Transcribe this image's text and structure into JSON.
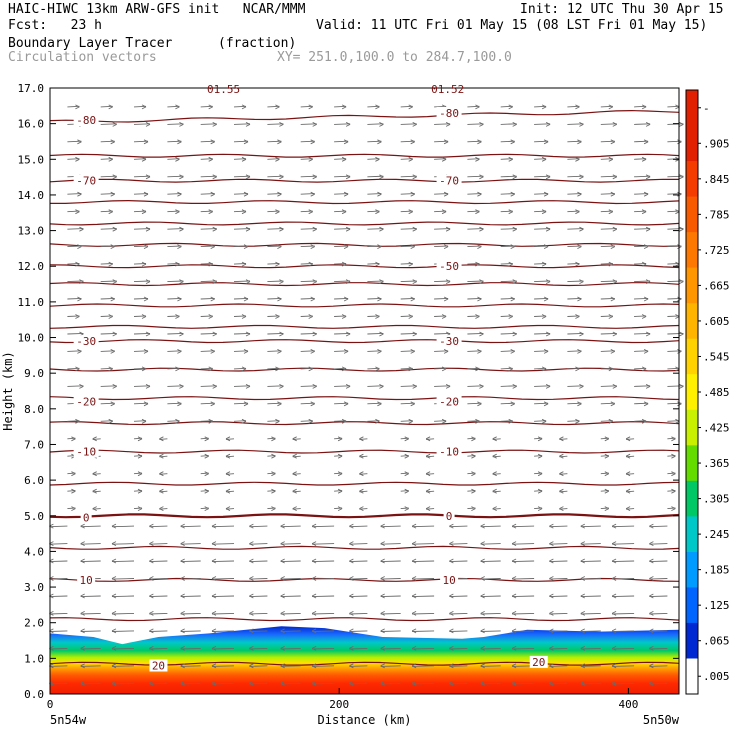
{
  "header": {
    "model": "HAIC-HIWC 13km ARW-GFS init   NCAR/MMM",
    "init": "Init: 12 UTC Thu 30 Apr 15",
    "fcst": "Fcst:   23 h",
    "valid": "Valid: 11 UTC Fri 01 May 15 (08 LST Fri 01 May 15)",
    "field": "Boundary Layer Tracer",
    "units": "(fraction)",
    "vectors": "Circulation vectors",
    "xy": "XY= 251.0,100.0 to 284.7,100.0"
  },
  "chart_data": {
    "type": "heatmap",
    "xlabel": "Distance (km)",
    "ylabel": "Height (km)",
    "xlim": [
      0,
      435
    ],
    "ylim": [
      0,
      17
    ],
    "x_ticks": [
      "0",
      "200",
      "400"
    ],
    "x_tick_values": [
      0,
      200,
      400
    ],
    "y_ticks": [
      "0.0",
      "1.0",
      "2.0",
      "3.0",
      "4.0",
      "5.0",
      "6.0",
      "7.0",
      "8.0",
      "9.0",
      "10.0",
      "11.0",
      "12.0",
      "13.0",
      "14.0",
      "15.0",
      "16.0",
      "17.0"
    ],
    "x_endpoints": {
      "left": "5n54w",
      "right": "5n50w"
    },
    "colorbar_labels": [
      "-",
      ".905",
      ".845",
      ".785",
      ".725",
      ".665",
      ".605",
      ".545",
      ".485",
      ".425",
      ".365",
      ".305",
      ".245",
      ".185",
      ".125",
      ".065",
      ".005"
    ],
    "colorbar_colors": [
      "#e02000",
      "#e02000",
      "#f43c00",
      "#f85a00",
      "#fc7800",
      "#ff9600",
      "#ffb400",
      "#ffd200",
      "#fff000",
      "#c8f000",
      "#64dc00",
      "#00c864",
      "#00c8c8",
      "#009bff",
      "#0064ff",
      "#0028d2",
      "#ffffff"
    ],
    "temperature_contour_labels": [
      {
        "label": "-80",
        "x": 25,
        "y": 16.1
      },
      {
        "label": "-80",
        "x": 276,
        "y": 16.3
      },
      {
        "label": "-70",
        "x": 25,
        "y": 14.4
      },
      {
        "label": "-70",
        "x": 276,
        "y": 14.4
      },
      {
        "label": "-50",
        "x": 276,
        "y": 12.0
      },
      {
        "label": "-30",
        "x": 25,
        "y": 9.9
      },
      {
        "label": "-30",
        "x": 276,
        "y": 9.9
      },
      {
        "label": "-20",
        "x": 25,
        "y": 8.2
      },
      {
        "label": "-20",
        "x": 276,
        "y": 8.2
      },
      {
        "label": "-10",
        "x": 25,
        "y": 6.8
      },
      {
        "label": "-10",
        "x": 276,
        "y": 6.8
      },
      {
        "label": "0",
        "x": 25,
        "y": 4.95
      },
      {
        "label": "0",
        "x": 276,
        "y": 5.0
      },
      {
        "label": "10",
        "x": 25,
        "y": 3.2
      },
      {
        "label": "10",
        "x": 276,
        "y": 3.2
      },
      {
        "label": "20",
        "x": 75,
        "y": 0.8
      },
      {
        "label": "20",
        "x": 338,
        "y": 0.9
      }
    ],
    "top_labels": [
      "01.55",
      "01.52"
    ],
    "boundary_layer_top_km": [
      {
        "x": 0,
        "y": 1.7
      },
      {
        "x": 30,
        "y": 1.6
      },
      {
        "x": 50,
        "y": 1.4
      },
      {
        "x": 75,
        "y": 1.6
      },
      {
        "x": 110,
        "y": 1.7
      },
      {
        "x": 160,
        "y": 1.9
      },
      {
        "x": 190,
        "y": 1.85
      },
      {
        "x": 230,
        "y": 1.6
      },
      {
        "x": 285,
        "y": 1.55
      },
      {
        "x": 300,
        "y": 1.6
      },
      {
        "x": 330,
        "y": 1.8
      },
      {
        "x": 380,
        "y": 1.75
      },
      {
        "x": 435,
        "y": 1.8
      }
    ]
  },
  "colors": {
    "contour": "#7a1212",
    "vector": "#6a6a6a",
    "frame": "#000000"
  }
}
